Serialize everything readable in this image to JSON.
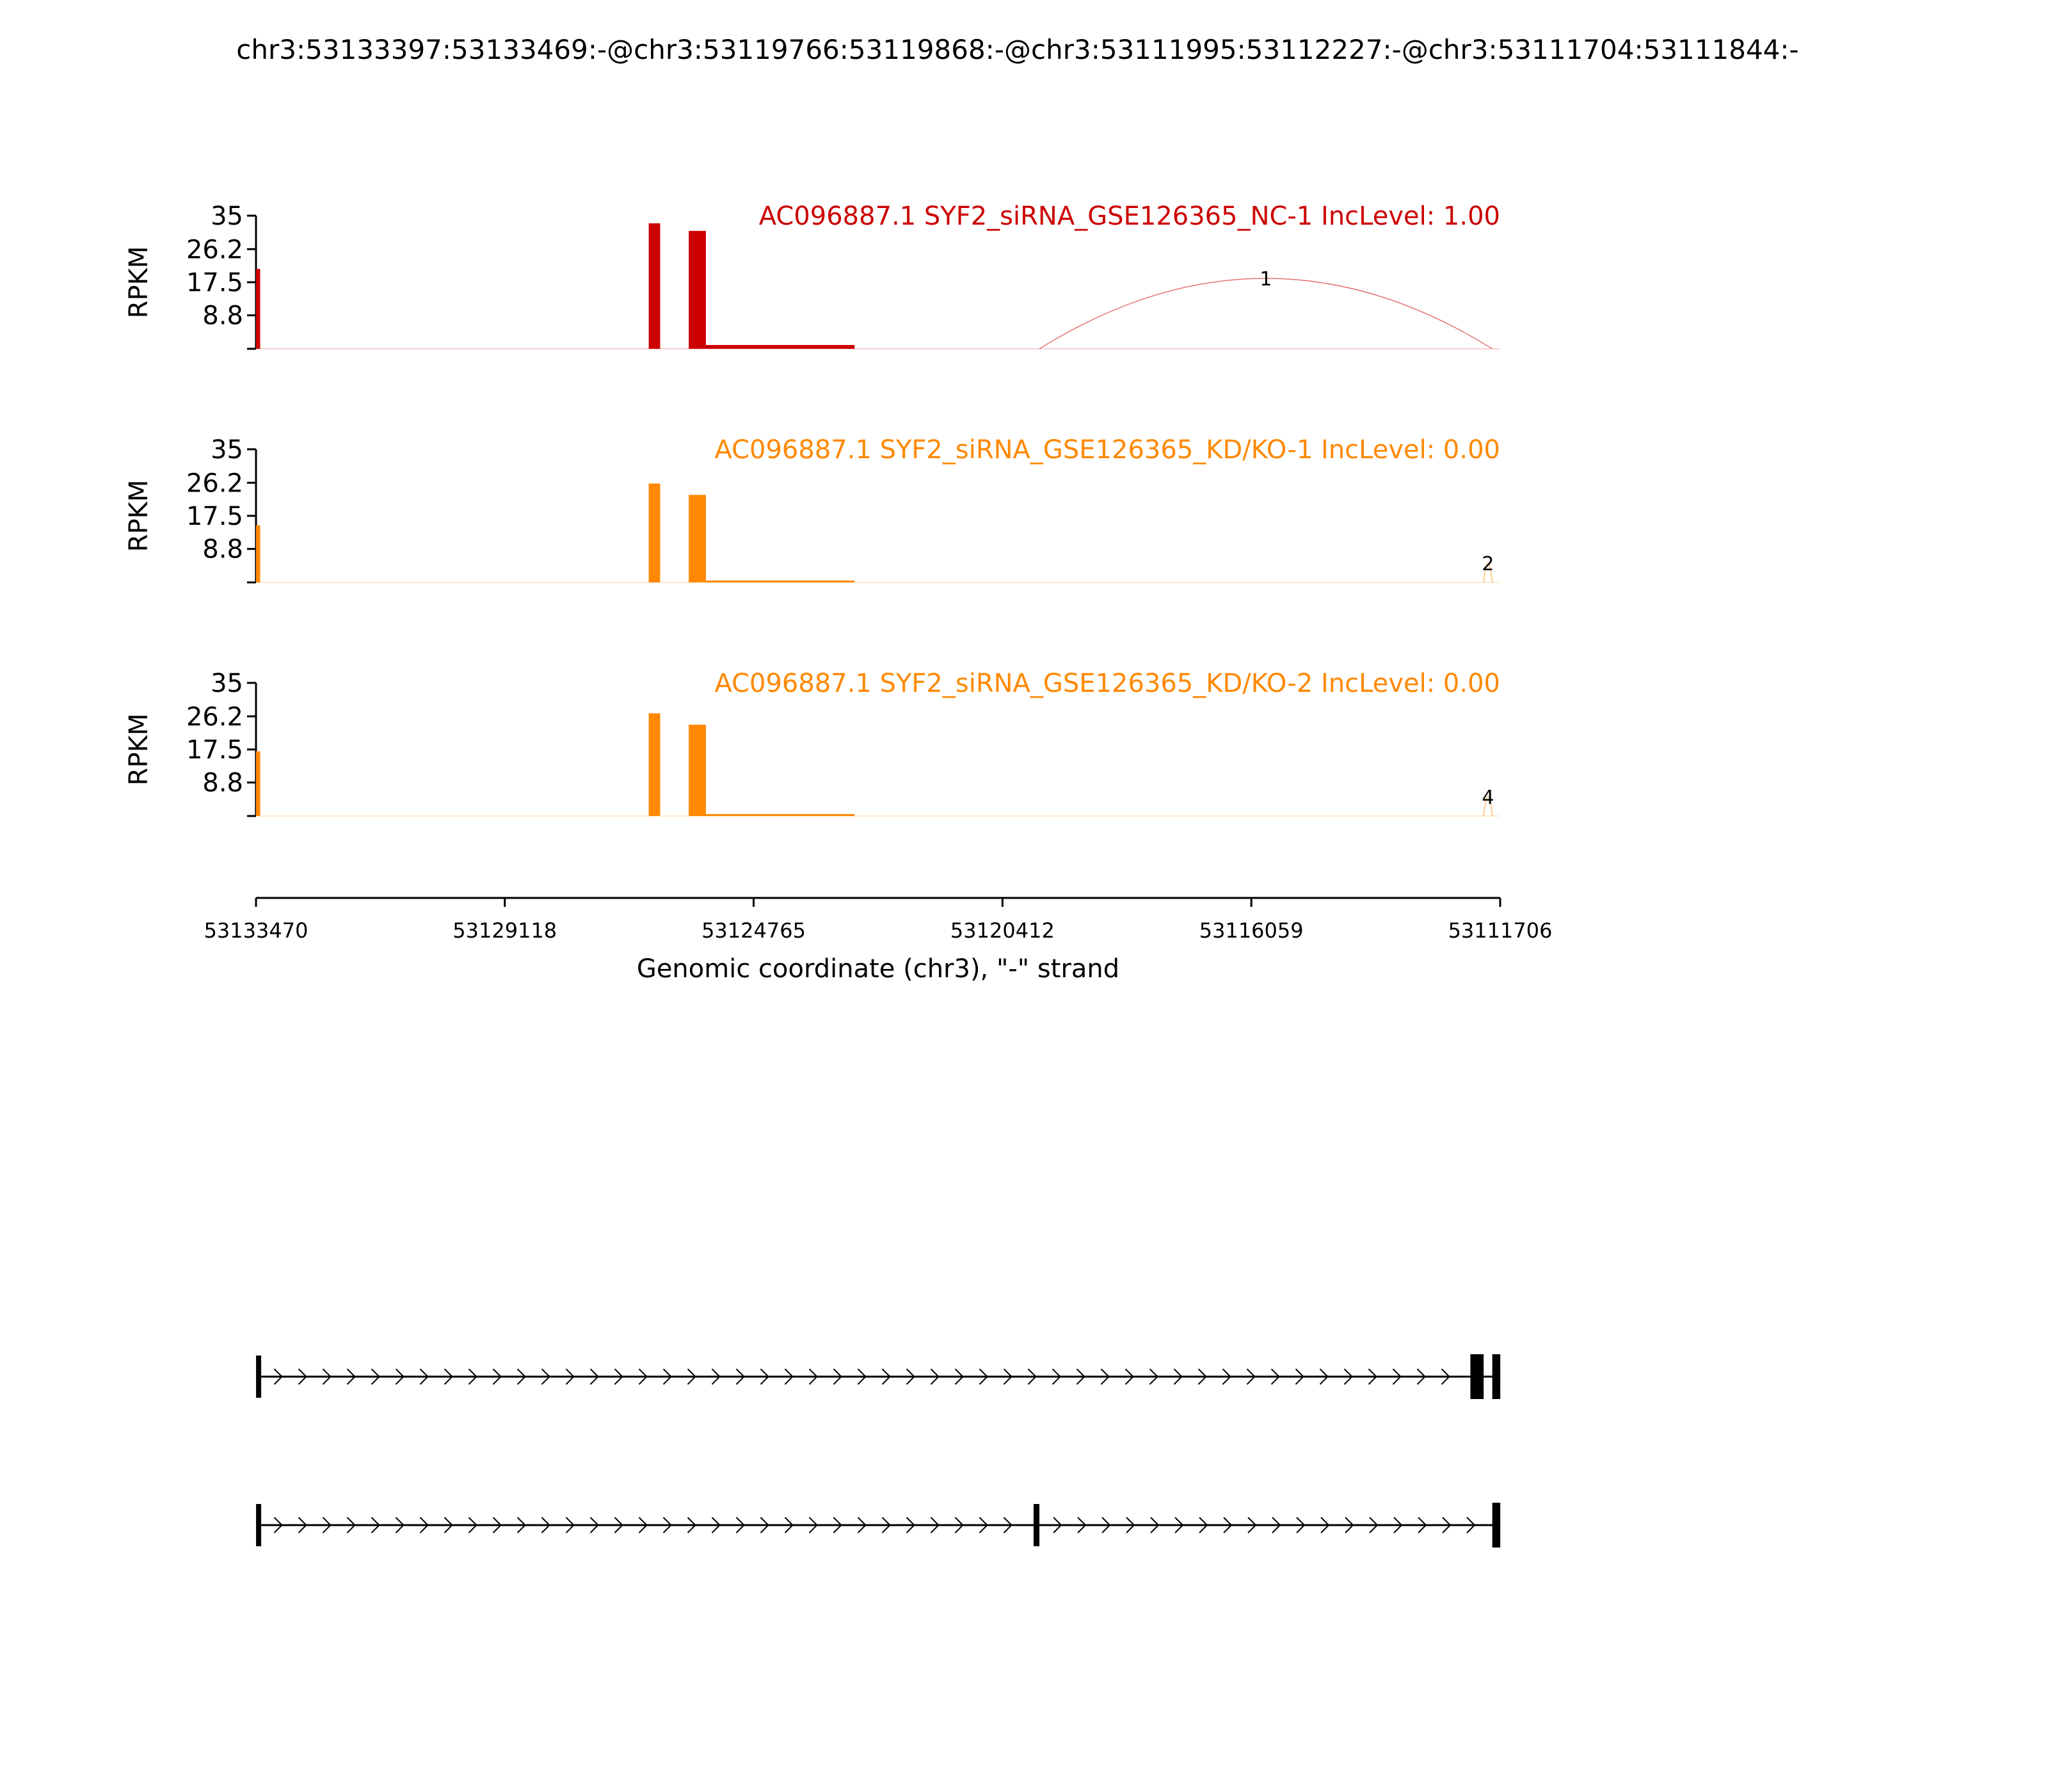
{
  "chart_data": {
    "type": "area",
    "title": "chr3:53133397:53133469:-@chr3:53119766:53119868:-@chr3:53111995:53112227:-@chr3:53111704:53111844:-",
    "ylabel": "RPKM",
    "xlabel": "Genomic coordinate (chr3), \"-\" strand",
    "xlim": [
      53133470,
      53111706
    ],
    "x_ticks": [
      53133470,
      53129118,
      53124765,
      53120412,
      53116059,
      53111706
    ],
    "y_ticks": [
      8.8,
      17.5,
      26.2,
      35
    ],
    "ylim": [
      0,
      35
    ],
    "grid": false,
    "tracks": [
      {
        "name": "AC096887.1 SYF2_siRNA_GSE126365_NC-1 IncLevel: 1.00",
        "color": "#cc0000",
        "coverage": [
          {
            "start": 53133470,
            "end": 53133397,
            "value": 21
          },
          {
            "start": 53126600,
            "end": 53126400,
            "value": 33
          },
          {
            "start": 53125900,
            "end": 53125600,
            "value": 31
          },
          {
            "start": 53125600,
            "end": 53123000,
            "value": 1
          }
        ],
        "junctions": [
          {
            "start": 53119766,
            "end": 53111844,
            "reads": "1"
          }
        ]
      },
      {
        "name": "AC096887.1 SYF2_siRNA_GSE126365_KD/KO-1 IncLevel: 0.00",
        "color": "#ff8800",
        "coverage": [
          {
            "start": 53133470,
            "end": 53133397,
            "value": 15
          },
          {
            "start": 53126600,
            "end": 53126400,
            "value": 26
          },
          {
            "start": 53125900,
            "end": 53125600,
            "value": 23
          },
          {
            "start": 53125600,
            "end": 53123000,
            "value": 0.5
          }
        ],
        "junctions": [
          {
            "start": 53111995,
            "end": 53111844,
            "reads": "2"
          }
        ]
      },
      {
        "name": "AC096887.1 SYF2_siRNA_GSE126365_KD/KO-2 IncLevel: 0.00",
        "color": "#ff8800",
        "coverage": [
          {
            "start": 53133470,
            "end": 53133397,
            "value": 17
          },
          {
            "start": 53126600,
            "end": 53126400,
            "value": 27
          },
          {
            "start": 53125900,
            "end": 53125600,
            "value": 24
          },
          {
            "start": 53125600,
            "end": 53123000,
            "value": 0.5
          }
        ],
        "junctions": [
          {
            "start": 53111995,
            "end": 53111844,
            "reads": "4"
          }
        ]
      }
    ],
    "isoforms": [
      {
        "exons": [
          [
            53133469,
            53133397
          ],
          [
            53112227,
            53111995
          ],
          [
            53111844,
            53111704
          ]
        ]
      },
      {
        "exons": [
          [
            53133469,
            53133397
          ],
          [
            53119868,
            53119766
          ],
          [
            53111844,
            53111704
          ]
        ]
      }
    ]
  }
}
